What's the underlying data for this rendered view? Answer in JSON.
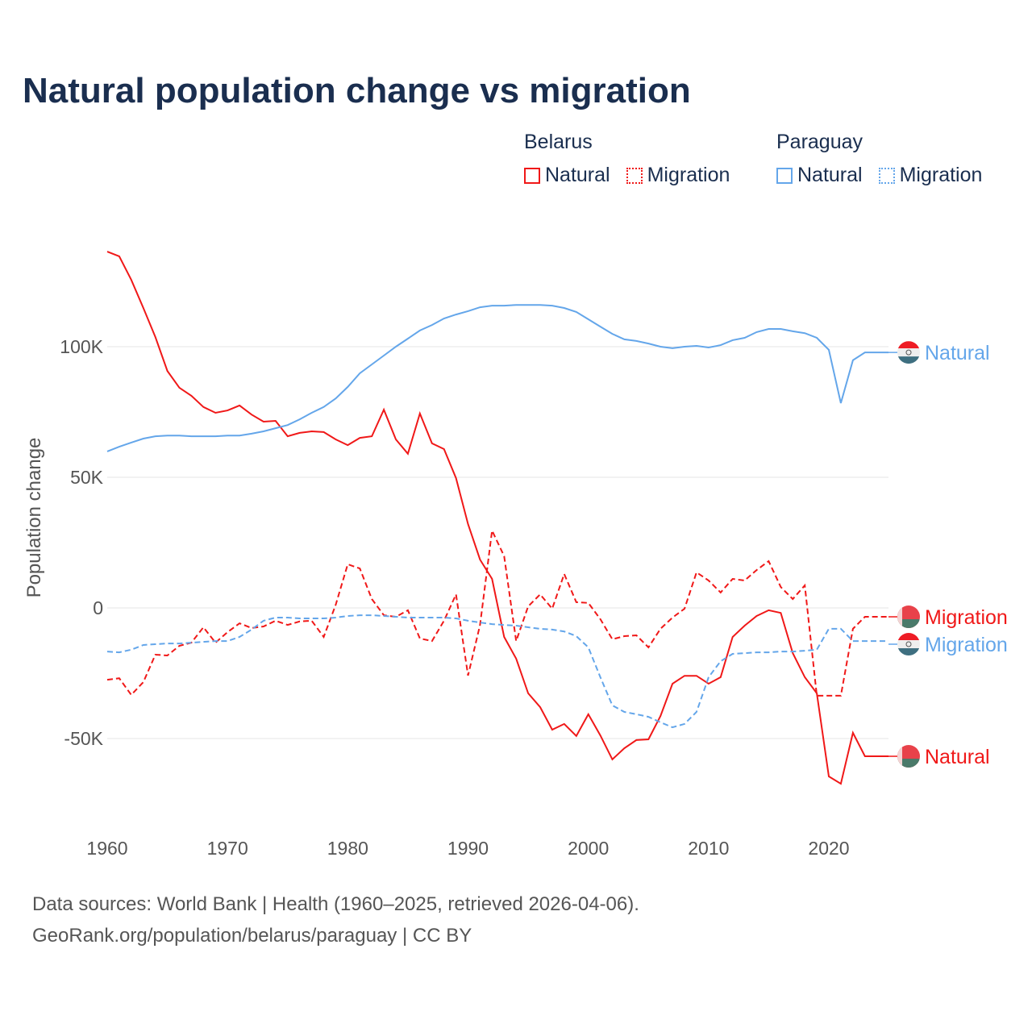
{
  "chart_data": {
    "type": "line",
    "title": "Natural population change vs migration",
    "ylabel": "Population change",
    "xlabel": "",
    "xlim": [
      1960,
      2025
    ],
    "ylim": [
      -80000,
      150000
    ],
    "x_ticks": [
      1960,
      1970,
      1980,
      1990,
      2000,
      2010,
      2020
    ],
    "y_ticks": [
      {
        "v": 100000,
        "label": "100K"
      },
      {
        "v": 50000,
        "label": "50K"
      },
      {
        "v": 0,
        "label": "0"
      },
      {
        "v": -50000,
        "label": "-50K"
      }
    ],
    "grid": true,
    "legend_position": "top-right",
    "x_start": 1960,
    "groups": [
      {
        "name": "Belarus",
        "color": "#f01818",
        "flag": "belarus-flag"
      },
      {
        "name": "Paraguay",
        "color": "#64a6ea",
        "flag": "paraguay-flag"
      }
    ],
    "series": [
      {
        "name": "Natural",
        "group": "Belarus",
        "color": "#f01818",
        "dash": false,
        "end_label": "Natural",
        "values": [
          136.4,
          134.6,
          125.6,
          114.8,
          103.7,
          90.7,
          84.3,
          81.2,
          76.9,
          74.7,
          75.6,
          77.5,
          74,
          71.3,
          71.6,
          65.7,
          67,
          67.6,
          67.3,
          64.5,
          62.3,
          65.1,
          65.7,
          75.9,
          64.5,
          59,
          74.4,
          63,
          60.8,
          49.7,
          32.1,
          18.5,
          11.1,
          -11.1,
          -19.4,
          -32.7,
          -38,
          -46.6,
          -44.4,
          -49,
          -40.7,
          -48.8,
          -58,
          -53.7,
          -50.6,
          -50.3,
          -41.4,
          -29,
          -26,
          -26,
          -29,
          -26.5,
          -11.1,
          -6.8,
          -3.1,
          -0.9,
          -1.9,
          -17.3,
          -26.5,
          -32.7,
          -64.5,
          -67.3,
          -47.8,
          -56.8,
          -56.8
        ]
      },
      {
        "name": "Migration",
        "group": "Belarus",
        "color": "#f01818",
        "dash": true,
        "end_label": "Migration",
        "values": [
          -27.5,
          -26.9,
          -33.3,
          -28.4,
          -17.9,
          -18.2,
          -14.5,
          -13.3,
          -7.4,
          -13.3,
          -9.3,
          -5.9,
          -7.7,
          -7.1,
          -4.9,
          -6.5,
          -5.2,
          -4.9,
          -11.1,
          1.2,
          16.7,
          15.1,
          3.4,
          -2.8,
          -3.4,
          -0.9,
          -11.7,
          -12.7,
          -4.9,
          5.2,
          -25.9,
          -6.5,
          29.6,
          19.8,
          -12.7,
          0.6,
          5.2,
          -0.3,
          13,
          2.2,
          1.9,
          -4.3,
          -12,
          -10.8,
          -10.5,
          -15.1,
          -8,
          -3.7,
          -0.3,
          13.6,
          10.5,
          5.9,
          11.1,
          10.5,
          14.5,
          17.9,
          8,
          3.4,
          8.6,
          -33.6,
          -33.6,
          -33.6,
          -8,
          -3.4,
          -3.4
        ]
      },
      {
        "name": "Natural",
        "group": "Paraguay",
        "color": "#64a6ea",
        "dash": false,
        "end_label": "Natural",
        "values": [
          59.9,
          61.7,
          63.3,
          64.8,
          65.7,
          66,
          66,
          65.7,
          65.7,
          65.7,
          66,
          66,
          66.7,
          67.6,
          68.8,
          70,
          72.2,
          74.7,
          76.9,
          80.2,
          84.6,
          89.8,
          93.2,
          96.6,
          100,
          103.1,
          106.2,
          108.3,
          110.8,
          112.3,
          113.6,
          115.1,
          115.7,
          115.7,
          116,
          116,
          116,
          115.7,
          114.8,
          113.3,
          110.5,
          107.7,
          104.9,
          102.8,
          102.2,
          101.2,
          100,
          99.4,
          100,
          100.3,
          99.7,
          100.6,
          102.5,
          103.4,
          105.6,
          106.8,
          106.8,
          105.9,
          105.2,
          103.4,
          98.8,
          78.4,
          94.8,
          97.8,
          97.8
        ]
      },
      {
        "name": "Migration",
        "group": "Paraguay",
        "color": "#64a6ea",
        "dash": true,
        "end_label": "Migration",
        "values": [
          -16.7,
          -17,
          -16,
          -14.2,
          -13.9,
          -13.6,
          -13.6,
          -13.3,
          -13,
          -12.7,
          -12.7,
          -11.1,
          -8.3,
          -4.9,
          -3.7,
          -3.7,
          -4,
          -4,
          -4,
          -3.7,
          -3.1,
          -2.8,
          -2.8,
          -3.1,
          -3.4,
          -3.7,
          -3.7,
          -3.7,
          -3.7,
          -4,
          -4.9,
          -5.6,
          -6.2,
          -6.5,
          -6.8,
          -7.4,
          -8,
          -8.3,
          -9,
          -10.8,
          -15.1,
          -26.5,
          -37.3,
          -39.8,
          -40.7,
          -41.7,
          -43.8,
          -45.7,
          -44.4,
          -39.8,
          -26.5,
          -20.4,
          -17.6,
          -17.3,
          -17,
          -17,
          -16.7,
          -16.7,
          -16.4,
          -16,
          -8,
          -8,
          -12.7,
          -12.7,
          -12.7
        ]
      }
    ],
    "value_unit": "thousands"
  },
  "footer": {
    "line1": "Data sources: World Bank | Health (1960–2025, retrieved 2026-04-06).",
    "line2": "GeoRank.org/population/belarus/paraguay | CC BY"
  }
}
